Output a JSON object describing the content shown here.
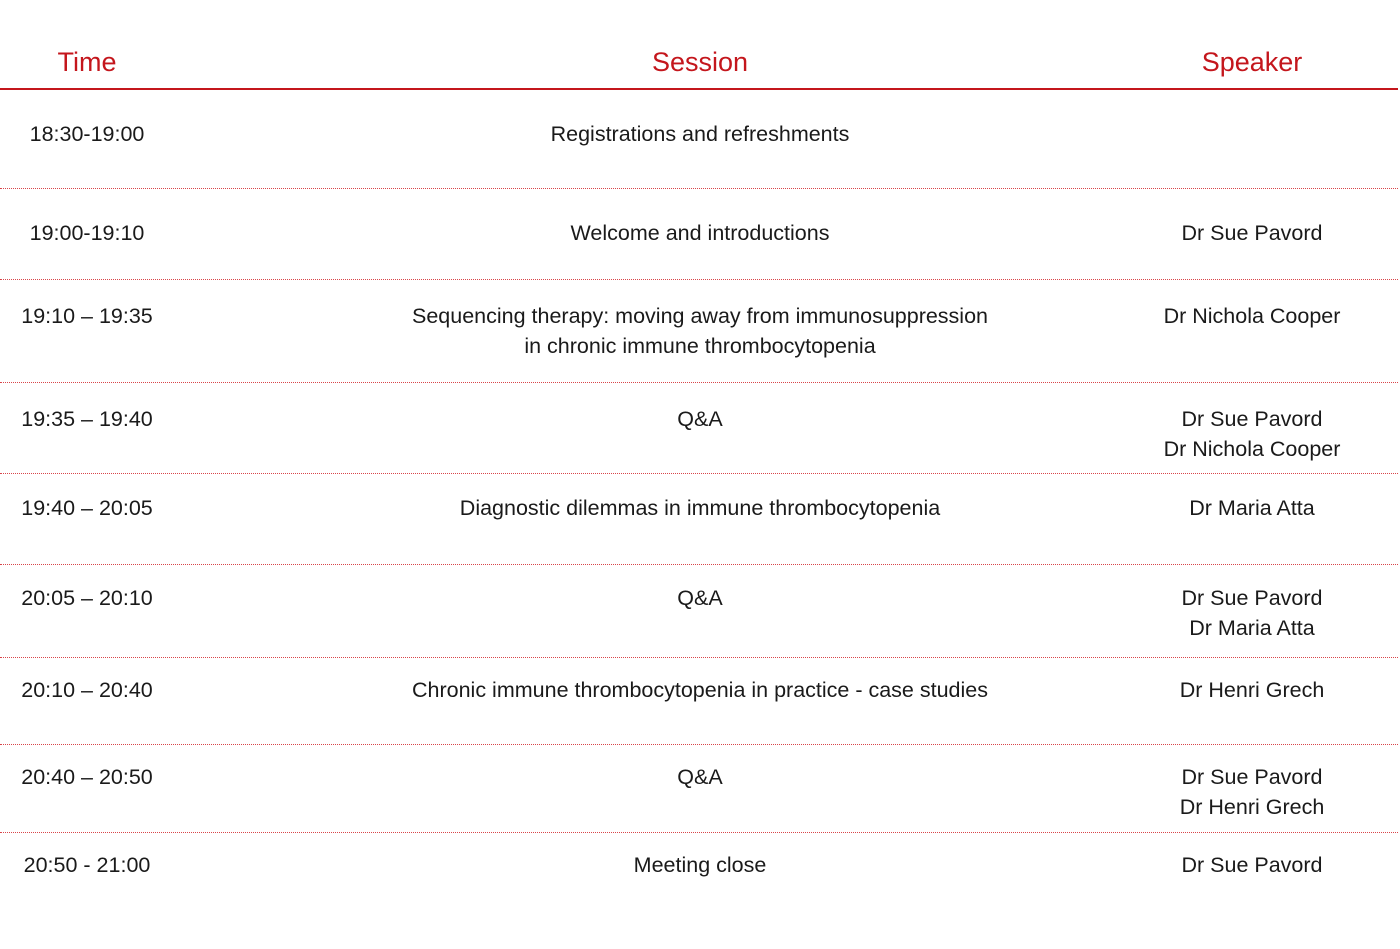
{
  "header": {
    "time": "Time",
    "session": "Session",
    "speaker": "Speaker"
  },
  "colors": {
    "accent": "#c4161c",
    "text": "#1a1a1a"
  },
  "rows": [
    {
      "time": "18:30-19:00",
      "session": [
        "Registrations and refreshments"
      ],
      "speakers": []
    },
    {
      "time": "19:00-19:10",
      "session": [
        "Welcome and introductions"
      ],
      "speakers": [
        "Dr Sue Pavord"
      ]
    },
    {
      "time": "19:10 – 19:35",
      "session": [
        "Sequencing therapy: moving away from immunosuppression",
        "in chronic immune thrombocytopenia"
      ],
      "speakers": [
        "Dr Nichola Cooper"
      ]
    },
    {
      "time": "19:35 – 19:40",
      "session": [
        "Q&A"
      ],
      "speakers": [
        "Dr Sue Pavord",
        "Dr Nichola Cooper"
      ]
    },
    {
      "time": "19:40 – 20:05",
      "session": [
        "Diagnostic dilemmas in immune thrombocytopenia"
      ],
      "speakers": [
        "Dr Maria Atta"
      ]
    },
    {
      "time": "20:05 – 20:10",
      "session": [
        "Q&A"
      ],
      "speakers": [
        "Dr Sue Pavord",
        "Dr Maria Atta"
      ]
    },
    {
      "time": "20:10 – 20:40",
      "session": [
        "Chronic immune thrombocytopenia in practice - case studies"
      ],
      "speakers": [
        "Dr Henri Grech"
      ]
    },
    {
      "time": "20:40 – 20:50",
      "session": [
        "Q&A"
      ],
      "speakers": [
        "Dr Sue Pavord",
        "Dr Henri Grech"
      ]
    },
    {
      "time": "20:50 - 21:00",
      "session": [
        "Meeting close"
      ],
      "speakers": [
        "Dr Sue Pavord"
      ]
    }
  ]
}
